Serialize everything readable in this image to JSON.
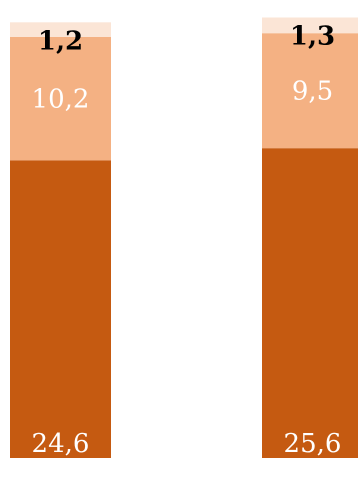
{
  "chart_data": {
    "type": "bar",
    "stacked": true,
    "title": "",
    "xlabel": "",
    "ylabel": "",
    "ylim": [
      0,
      37.1
    ],
    "grid": false,
    "legend": "none",
    "categories": [
      "",
      ""
    ],
    "series": [
      {
        "values": [
          24.6,
          25.6
        ],
        "labels": [
          "24,6",
          "25,6"
        ],
        "color": "#c55a11",
        "label_color": "#ffffff"
      },
      {
        "values": [
          10.2,
          9.5
        ],
        "labels": [
          "10,2",
          "9,5"
        ],
        "color": "#f4b183",
        "label_color": "#ffffff"
      },
      {
        "values": [
          1.2,
          1.3
        ],
        "labels": [
          "1,2",
          "1,3"
        ],
        "color": "#fbe5d6",
        "label_color": "#000000"
      }
    ]
  }
}
